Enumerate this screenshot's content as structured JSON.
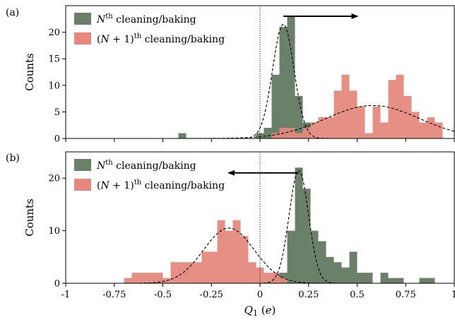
{
  "chart_data": [
    {
      "type": "bar",
      "panel_label": "(a)",
      "xlim": [
        -1,
        1
      ],
      "ylim": [
        0,
        25
      ],
      "yticks": [
        0,
        5,
        10,
        15,
        20
      ],
      "xticks": [
        -1,
        -0.75,
        -0.5,
        -0.25,
        0,
        0.25,
        0.5,
        0.75,
        1
      ],
      "ylabel": "Counts",
      "bin_width": 0.04,
      "grey_overlap_color": "#d3d3d3",
      "legend_position": "top-left",
      "vline_x": 0,
      "arrow": {
        "from": 0.12,
        "to": 0.5,
        "y": 23,
        "direction": "right"
      },
      "series": [
        {
          "name": "N",
          "legend_label": {
            "prefix": "N",
            "sup": "th",
            "suffix": " cleaning/baking"
          },
          "color": "#6b8068",
          "bins": [
            [
              -0.42,
              1
            ],
            [
              -0.02,
              1
            ],
            [
              0.02,
              2
            ],
            [
              0.06,
              12
            ],
            [
              0.1,
              21
            ],
            [
              0.14,
              23
            ],
            [
              0.18,
              8
            ],
            [
              0.22,
              3
            ]
          ],
          "gaussian": {
            "mu": 0.12,
            "sigma": 0.055,
            "amp": 21.5
          }
        },
        {
          "name": "N+1",
          "legend_label": {
            "prefix": "(N + 1)",
            "sup": "th",
            "suffix": " cleaning/baking"
          },
          "color": "#e8887c",
          "bins": [
            [
              0.06,
              1
            ],
            [
              0.1,
              2
            ],
            [
              0.14,
              2
            ],
            [
              0.18,
              1
            ],
            [
              0.22,
              2
            ],
            [
              0.26,
              3
            ],
            [
              0.3,
              4
            ],
            [
              0.34,
              4
            ],
            [
              0.38,
              9
            ],
            [
              0.42,
              12
            ],
            [
              0.46,
              9
            ],
            [
              0.5,
              6
            ],
            [
              0.54,
              1
            ],
            [
              0.58,
              6
            ],
            [
              0.62,
              3
            ],
            [
              0.66,
              11
            ],
            [
              0.7,
              12
            ],
            [
              0.74,
              8
            ],
            [
              0.78,
              5
            ],
            [
              0.82,
              3
            ],
            [
              0.86,
              4
            ],
            [
              0.9,
              3
            ]
          ],
          "gaussian": {
            "mu": 0.58,
            "sigma": 0.24,
            "amp": 6.2
          }
        }
      ]
    },
    {
      "type": "bar",
      "panel_label": "(b)",
      "xlim": [
        -1,
        1
      ],
      "ylim": [
        0,
        25
      ],
      "yticks": [
        0,
        10,
        20
      ],
      "xticks": [
        -1,
        -0.75,
        -0.5,
        -0.25,
        0,
        0.25,
        0.5,
        0.75,
        1
      ],
      "xtick_labels": [
        "-1",
        "-0.75",
        "-0.5",
        "-0.25",
        "0",
        "0.25",
        "0.5",
        "0.75",
        "1"
      ],
      "ylabel": "Counts",
      "xlabel_var": "Q",
      "xlabel_sub": "1",
      "xlabel_unit": " (e)",
      "bin_width": 0.04,
      "grey_overlap_color": "#d3d3d3",
      "legend_position": "top-left",
      "vline_x": 0,
      "arrow": {
        "from": 0.2,
        "to": -0.16,
        "y": 21,
        "direction": "left"
      },
      "series": [
        {
          "name": "N",
          "legend_label": {
            "prefix": "N",
            "sup": "th",
            "suffix": " cleaning/baking"
          },
          "color": "#6b8068",
          "bins": [
            [
              0.06,
              1
            ],
            [
              0.1,
              2
            ],
            [
              0.14,
              10
            ],
            [
              0.18,
              22
            ],
            [
              0.22,
              18
            ],
            [
              0.26,
              10
            ],
            [
              0.3,
              8
            ],
            [
              0.34,
              5
            ],
            [
              0.38,
              4
            ],
            [
              0.42,
              3
            ],
            [
              0.46,
              6
            ],
            [
              0.5,
              2
            ],
            [
              0.54,
              2
            ],
            [
              0.62,
              2
            ],
            [
              0.66,
              1
            ],
            [
              0.7,
              1
            ],
            [
              0.82,
              1
            ],
            [
              0.86,
              1
            ]
          ],
          "gaussian": {
            "mu": 0.2,
            "sigma": 0.05,
            "amp": 21.5
          }
        },
        {
          "name": "N+1",
          "legend_label": {
            "prefix": "(N + 1)",
            "sup": "th",
            "suffix": " cleaning/baking"
          },
          "color": "#e8887c",
          "bins": [
            [
              -0.7,
              1
            ],
            [
              -0.66,
              2
            ],
            [
              -0.62,
              2
            ],
            [
              -0.58,
              2
            ],
            [
              -0.54,
              2
            ],
            [
              -0.5,
              1
            ],
            [
              -0.46,
              4
            ],
            [
              -0.42,
              4
            ],
            [
              -0.38,
              4
            ],
            [
              -0.34,
              4
            ],
            [
              -0.3,
              6
            ],
            [
              -0.26,
              6
            ],
            [
              -0.22,
              12
            ],
            [
              -0.18,
              10
            ],
            [
              -0.14,
              12
            ],
            [
              -0.1,
              9
            ],
            [
              -0.06,
              4
            ],
            [
              -0.02,
              3
            ],
            [
              0.02,
              2
            ],
            [
              0.06,
              2
            ],
            [
              0.1,
              1
            ]
          ],
          "gaussian": {
            "mu": -0.16,
            "sigma": 0.13,
            "amp": 10.5
          }
        }
      ]
    }
  ]
}
